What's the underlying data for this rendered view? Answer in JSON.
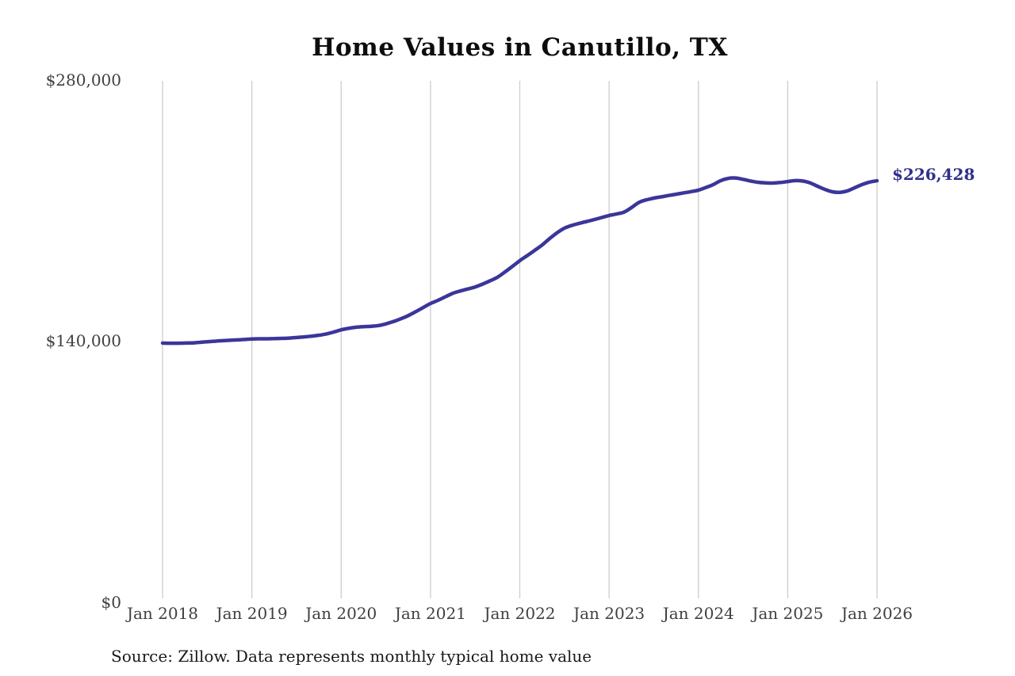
{
  "chart_data": {
    "type": "line",
    "title": "Home Values in Canutillo, TX",
    "source_note": "Source: Zillow. Data represents monthly typical home value",
    "end_label": "$226,428",
    "end_value": 226428,
    "x_tick_labels": [
      "Jan 2018",
      "Jan 2019",
      "Jan 2020",
      "Jan 2021",
      "Jan 2022",
      "Jan 2023",
      "Jan 2024",
      "Jan 2025",
      "Jan 2026"
    ],
    "y_ticks": [
      {
        "value": 280000,
        "label": "$280,000"
      },
      {
        "value": 140000,
        "label": "$140,000"
      },
      {
        "value": 0,
        "label": "$0"
      }
    ],
    "ylim": [
      0,
      280000
    ],
    "grid": "vertical-only",
    "legend": "none",
    "interval": "monthly",
    "series": [
      {
        "name": "Typical home value",
        "start": "Jan 2018",
        "end": "Jan 2026",
        "values": [
          139400,
          139300,
          139300,
          139400,
          139500,
          139800,
          140100,
          140400,
          140700,
          140900,
          141100,
          141300,
          141600,
          141700,
          141700,
          141800,
          141900,
          142100,
          142400,
          142700,
          143100,
          143600,
          144300,
          145300,
          146500,
          147300,
          147900,
          148200,
          148400,
          148800,
          149700,
          150900,
          152400,
          154100,
          156200,
          158400,
          160600,
          162300,
          164200,
          166100,
          167300,
          168400,
          169500,
          171000,
          172800,
          174700,
          177500,
          180500,
          183600,
          186300,
          189100,
          192000,
          195400,
          198500,
          201000,
          202500,
          203600,
          204600,
          205600,
          206700,
          207800,
          208600,
          209600,
          212000,
          214800,
          216200,
          217100,
          217800,
          218500,
          219200,
          219900,
          220600,
          221400,
          222800,
          224400,
          226500,
          227700,
          227900,
          227200,
          226300,
          225600,
          225300,
          225200,
          225500,
          226000,
          226500,
          226300,
          225300,
          223500,
          221800,
          220500,
          220200,
          221000,
          222700,
          224400,
          225700,
          226428
        ]
      }
    ],
    "colors": {
      "line": "#3a369a",
      "end_label": "#31308c",
      "gridline": "#cccccc",
      "axis_text": "#404040",
      "title": "#0d0d0d",
      "source": "#1a1a1a"
    }
  }
}
